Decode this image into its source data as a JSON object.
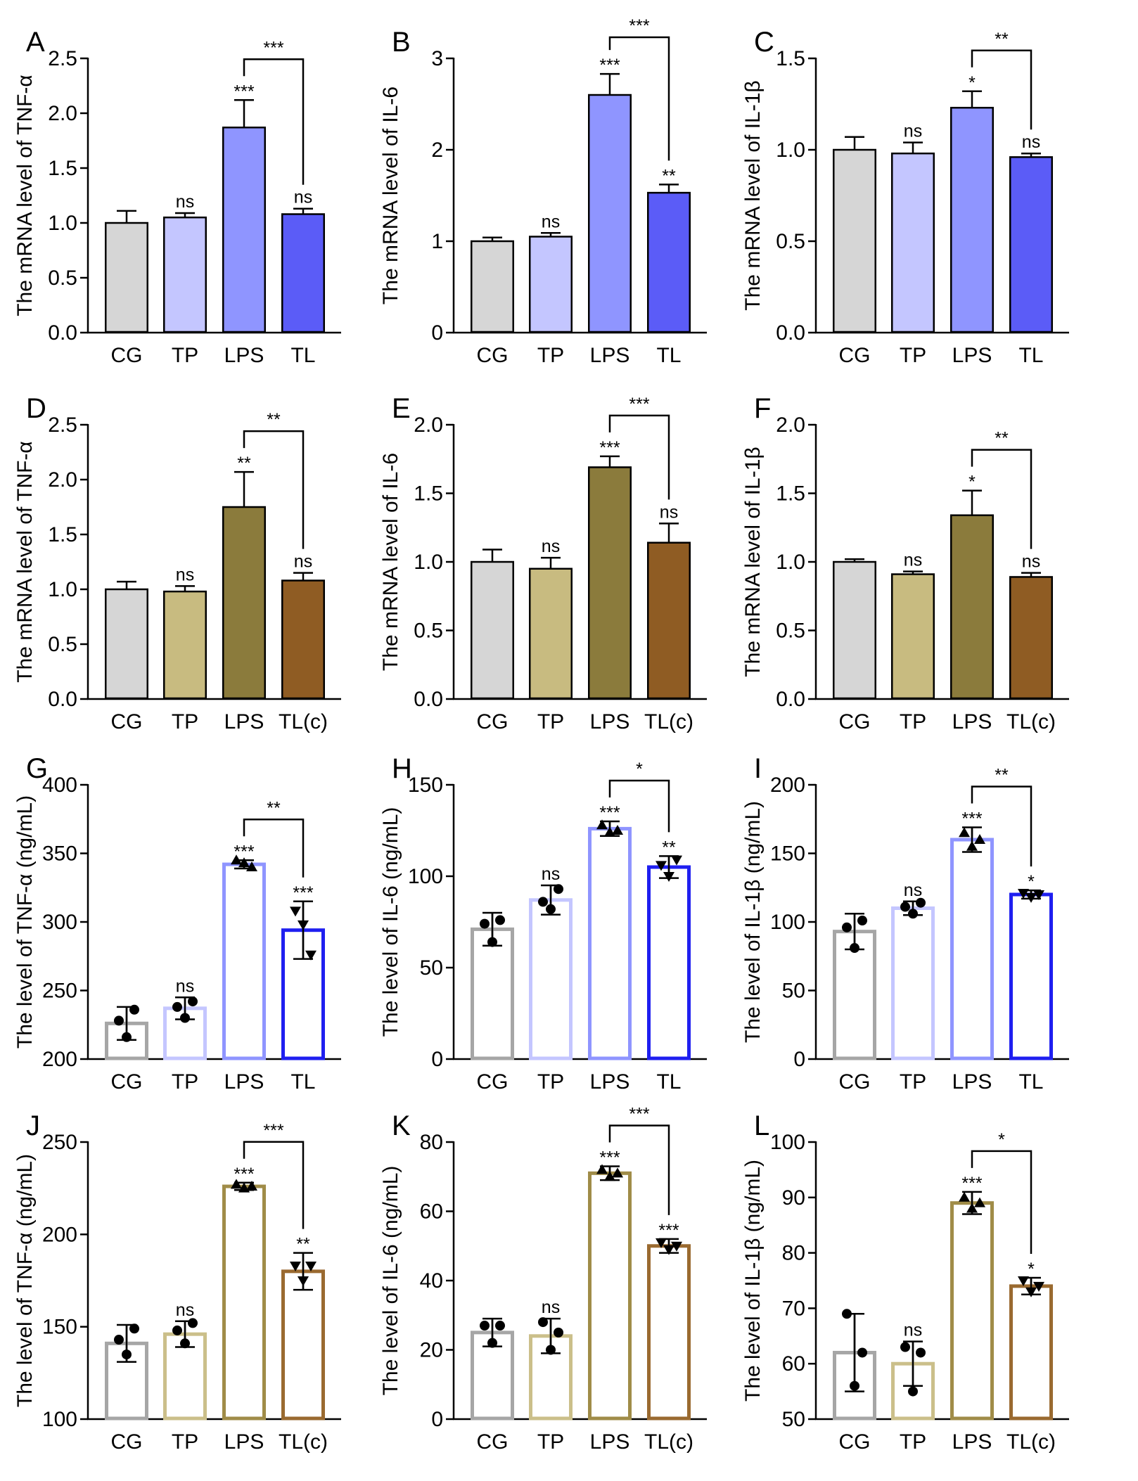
{
  "chart_data": [
    {
      "panel": "A",
      "type": "bar",
      "kind": "solid",
      "ylabel": "The mRNA level of TNF-α",
      "ylim": [
        0,
        2.5
      ],
      "yticks": [
        0,
        0.5,
        1,
        1.5,
        2,
        2.5
      ],
      "ytick_labels": [
        "0.0",
        "0.5",
        "1.0",
        "1.5",
        "2.0",
        "2.5"
      ],
      "categories": [
        "CG",
        "TP",
        "LPS",
        "TL"
      ],
      "values": [
        1.0,
        1.05,
        1.87,
        1.08
      ],
      "errors": [
        0.11,
        0.04,
        0.25,
        0.05
      ],
      "colors": [
        "#d6d6d6",
        "#c4c6ff",
        "#8f95ff",
        "#5b5cf7"
      ],
      "sig": [
        "",
        "ns",
        "***",
        "ns"
      ],
      "bracket": {
        "label": "***"
      }
    },
    {
      "panel": "B",
      "type": "bar",
      "kind": "solid",
      "ylabel": "The mRNA level of IL-6",
      "ylim": [
        0,
        3
      ],
      "yticks": [
        0,
        1,
        2,
        3
      ],
      "ytick_labels": [
        "0",
        "1",
        "2",
        "3"
      ],
      "categories": [
        "CG",
        "TP",
        "LPS",
        "TL"
      ],
      "values": [
        1.0,
        1.05,
        2.6,
        1.53
      ],
      "errors": [
        0.04,
        0.04,
        0.23,
        0.09
      ],
      "colors": [
        "#d6d6d6",
        "#c4c6ff",
        "#8f95ff",
        "#5b5cf7"
      ],
      "sig": [
        "",
        "ns",
        "***",
        "**"
      ],
      "bracket": {
        "label": "***"
      }
    },
    {
      "panel": "C",
      "type": "bar",
      "kind": "solid",
      "ylabel": "The mRNA level of IL-1β",
      "ylim": [
        0,
        1.5
      ],
      "yticks": [
        0,
        0.5,
        1,
        1.5
      ],
      "ytick_labels": [
        "0.0",
        "0.5",
        "1.0",
        "1.5"
      ],
      "categories": [
        "CG",
        "TP",
        "LPS",
        "TL"
      ],
      "values": [
        1.0,
        0.98,
        1.23,
        0.96
      ],
      "errors": [
        0.07,
        0.06,
        0.09,
        0.02
      ],
      "colors": [
        "#d6d6d6",
        "#c4c6ff",
        "#8f95ff",
        "#5b5cf7"
      ],
      "sig": [
        "",
        "ns",
        "*",
        "ns"
      ],
      "bracket": {
        "label": "**"
      }
    },
    {
      "panel": "D",
      "type": "bar",
      "kind": "solid",
      "ylabel": "The mRNA level of TNF-α",
      "ylim": [
        0,
        2.5
      ],
      "yticks": [
        0,
        0.5,
        1,
        1.5,
        2,
        2.5
      ],
      "ytick_labels": [
        "0.0",
        "0.5",
        "1.0",
        "1.5",
        "2.0",
        "2.5"
      ],
      "categories": [
        "CG",
        "TP",
        "LPS",
        "TL(c)"
      ],
      "values": [
        1.0,
        0.98,
        1.75,
        1.08
      ],
      "errors": [
        0.07,
        0.05,
        0.32,
        0.07
      ],
      "colors": [
        "#d6d6d6",
        "#c8bb80",
        "#8b7b3c",
        "#8f5c23"
      ],
      "sig": [
        "",
        "ns",
        "**",
        "ns"
      ],
      "bracket": {
        "label": "**"
      }
    },
    {
      "panel": "E",
      "type": "bar",
      "kind": "solid",
      "ylabel": "The mRNA level of IL-6",
      "ylim": [
        0,
        2
      ],
      "yticks": [
        0,
        0.5,
        1,
        1.5,
        2
      ],
      "ytick_labels": [
        "0.0",
        "0.5",
        "1.0",
        "1.5",
        "2.0"
      ],
      "categories": [
        "CG",
        "TP",
        "LPS",
        "TL(c)"
      ],
      "values": [
        1.0,
        0.95,
        1.69,
        1.14
      ],
      "errors": [
        0.09,
        0.08,
        0.08,
        0.14
      ],
      "colors": [
        "#d6d6d6",
        "#c8bb80",
        "#8b7b3c",
        "#8f5c23"
      ],
      "sig": [
        "",
        "ns",
        "***",
        "ns"
      ],
      "bracket": {
        "label": "***"
      }
    },
    {
      "panel": "F",
      "type": "bar",
      "kind": "solid",
      "ylabel": "The mRNA level of IL-1β",
      "ylim": [
        0,
        2
      ],
      "yticks": [
        0,
        0.5,
        1,
        1.5,
        2
      ],
      "ytick_labels": [
        "0.0",
        "0.5",
        "1.0",
        "1.5",
        "2.0"
      ],
      "categories": [
        "CG",
        "TP",
        "LPS",
        "TL(c)"
      ],
      "values": [
        1.0,
        0.91,
        1.34,
        0.89
      ],
      "errors": [
        0.02,
        0.02,
        0.18,
        0.03
      ],
      "colors": [
        "#d6d6d6",
        "#c8bb80",
        "#8b7b3c",
        "#8f5c23"
      ],
      "sig": [
        "",
        "ns",
        "*",
        "ns"
      ],
      "bracket": {
        "label": "**"
      }
    },
    {
      "panel": "G",
      "type": "bar",
      "kind": "open",
      "ylabel": "The level of TNF-α (ng/mL)",
      "ylim": [
        200,
        400
      ],
      "yticks": [
        200,
        250,
        300,
        350,
        400
      ],
      "ytick_labels": [
        "200",
        "250",
        "300",
        "350",
        "400"
      ],
      "categories": [
        "CG",
        "TP",
        "LPS",
        "TL"
      ],
      "values": [
        226,
        237,
        342,
        294
      ],
      "errors": [
        12,
        8,
        3,
        21
      ],
      "points": [
        [
          228,
          216,
          236
        ],
        [
          238,
          230,
          242
        ],
        [
          345,
          343,
          340
        ],
        [
          308,
          298,
          276
        ]
      ],
      "colors": [
        "#a6a6a6",
        "#c4c6ff",
        "#8f95ff",
        "#1f1ff0"
      ],
      "sig": [
        "",
        "ns",
        "***",
        "***"
      ],
      "bracket": {
        "label": "**"
      }
    },
    {
      "panel": "H",
      "type": "bar",
      "kind": "open",
      "ylabel": "The level of IL-6 (ng/mL)",
      "ylim": [
        0,
        150
      ],
      "yticks": [
        0,
        50,
        100,
        150
      ],
      "ytick_labels": [
        "0",
        "50",
        "100",
        "150"
      ],
      "categories": [
        "CG",
        "TP",
        "LPS",
        "TL"
      ],
      "values": [
        71,
        87,
        126,
        105
      ],
      "errors": [
        9,
        8,
        4,
        6
      ],
      "points": [
        [
          74,
          64,
          76
        ],
        [
          86,
          82,
          93
        ],
        [
          128,
          124,
          125
        ],
        [
          106,
          100,
          109
        ]
      ],
      "colors": [
        "#a6a6a6",
        "#c4c6ff",
        "#8f95ff",
        "#1f1ff0"
      ],
      "sig": [
        "",
        "ns",
        "***",
        "**"
      ],
      "bracket": {
        "label": "*"
      }
    },
    {
      "panel": "I",
      "type": "bar",
      "kind": "open",
      "ylabel": "The level of IL-1β (ng/mL)",
      "ylim": [
        0,
        200
      ],
      "yticks": [
        0,
        50,
        100,
        150,
        200
      ],
      "ytick_labels": [
        "0",
        "50",
        "100",
        "150",
        "200"
      ],
      "categories": [
        "CG",
        "TP",
        "LPS",
        "TL"
      ],
      "values": [
        93,
        110,
        160,
        120
      ],
      "errors": [
        13,
        5,
        9,
        3
      ],
      "points": [
        [
          96,
          81,
          101
        ],
        [
          111,
          106,
          114
        ],
        [
          165,
          155,
          160
        ],
        [
          121,
          118,
          120
        ]
      ],
      "colors": [
        "#a6a6a6",
        "#c4c6ff",
        "#8f95ff",
        "#1f1ff0"
      ],
      "sig": [
        "",
        "ns",
        "***",
        "*"
      ],
      "bracket": {
        "label": "**"
      }
    },
    {
      "panel": "J",
      "type": "bar",
      "kind": "open",
      "ylabel": "The level of TNF-α (ng/mL)",
      "ylim": [
        100,
        250
      ],
      "yticks": [
        100,
        150,
        200,
        250
      ],
      "ytick_labels": [
        "100",
        "150",
        "200",
        "250"
      ],
      "categories": [
        "CG",
        "TP",
        "LPS",
        "TL(c)"
      ],
      "values": [
        141,
        146,
        226,
        180
      ],
      "errors": [
        10,
        7,
        2,
        10
      ],
      "points": [
        [
          143,
          135,
          149
        ],
        [
          148,
          141,
          152
        ],
        [
          227,
          225,
          226
        ],
        [
          183,
          175,
          183
        ]
      ],
      "colors": [
        "#a6a6a6",
        "#cbbf8a",
        "#a08c48",
        "#9a6a30"
      ],
      "sig": [
        "",
        "ns",
        "***",
        "**"
      ],
      "bracket": {
        "label": "***"
      }
    },
    {
      "panel": "K",
      "type": "bar",
      "kind": "open",
      "ylabel": "The level of IL-6 (ng/mL)",
      "ylim": [
        0,
        80
      ],
      "yticks": [
        0,
        20,
        40,
        60,
        80
      ],
      "ytick_labels": [
        "0",
        "20",
        "40",
        "60",
        "80"
      ],
      "categories": [
        "CG",
        "TP",
        "LPS",
        "TL(c)"
      ],
      "values": [
        25,
        24,
        71,
        50
      ],
      "errors": [
        4,
        5,
        2,
        2
      ],
      "points": [
        [
          27,
          22,
          27
        ],
        [
          28,
          20,
          25
        ],
        [
          72,
          70,
          71
        ],
        [
          51,
          49,
          50
        ]
      ],
      "colors": [
        "#a6a6a6",
        "#cbbf8a",
        "#a08c48",
        "#9a6a30"
      ],
      "sig": [
        "",
        "ns",
        "***",
        "***"
      ],
      "bracket": {
        "label": "***"
      }
    },
    {
      "panel": "L",
      "type": "bar",
      "kind": "open",
      "ylabel": "The level of IL-1β (ng/mL)",
      "ylim": [
        50,
        100
      ],
      "yticks": [
        50,
        60,
        70,
        80,
        90,
        100
      ],
      "ytick_labels": [
        "50",
        "60",
        "70",
        "80",
        "90",
        "100"
      ],
      "categories": [
        "CG",
        "TP",
        "LPS",
        "TL(c)"
      ],
      "values": [
        62,
        60,
        89,
        74
      ],
      "errors": [
        7,
        4,
        2,
        1.5
      ],
      "points": [
        [
          69,
          56,
          62
        ],
        [
          63,
          55,
          62
        ],
        [
          90,
          88,
          89
        ],
        [
          75,
          73,
          74
        ]
      ],
      "colors": [
        "#a6a6a6",
        "#cbbf8a",
        "#a08c48",
        "#9a6a30"
      ],
      "sig": [
        "",
        "ns",
        "***",
        "*"
      ],
      "bracket": {
        "label": "*"
      }
    }
  ]
}
